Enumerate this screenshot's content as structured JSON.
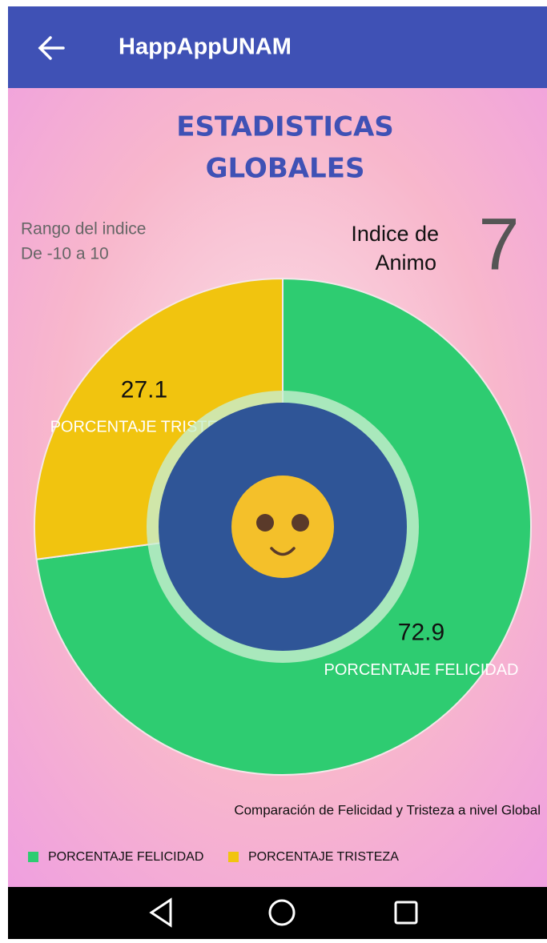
{
  "header": {
    "title": "HappAppUNAM"
  },
  "heading": [
    "ESTADISTICAS",
    "GLOBALES"
  ],
  "range": [
    "Rango del indice",
    "De -10 a 10"
  ],
  "mood_index": {
    "label": [
      "Indice de",
      "Animo"
    ],
    "value": 7
  },
  "chart_data": {
    "type": "donut",
    "categories": [
      "PORCENTAJE FELICIDAD",
      "PORCENTAJE TRISTEZA"
    ],
    "values": [
      72.9,
      27.1
    ],
    "colors": [
      "#2ecc71",
      "#f1c40f"
    ],
    "description": "Comparación de Felicidad y Tristeza a nivel Global",
    "legend": "bottom-left"
  }
}
